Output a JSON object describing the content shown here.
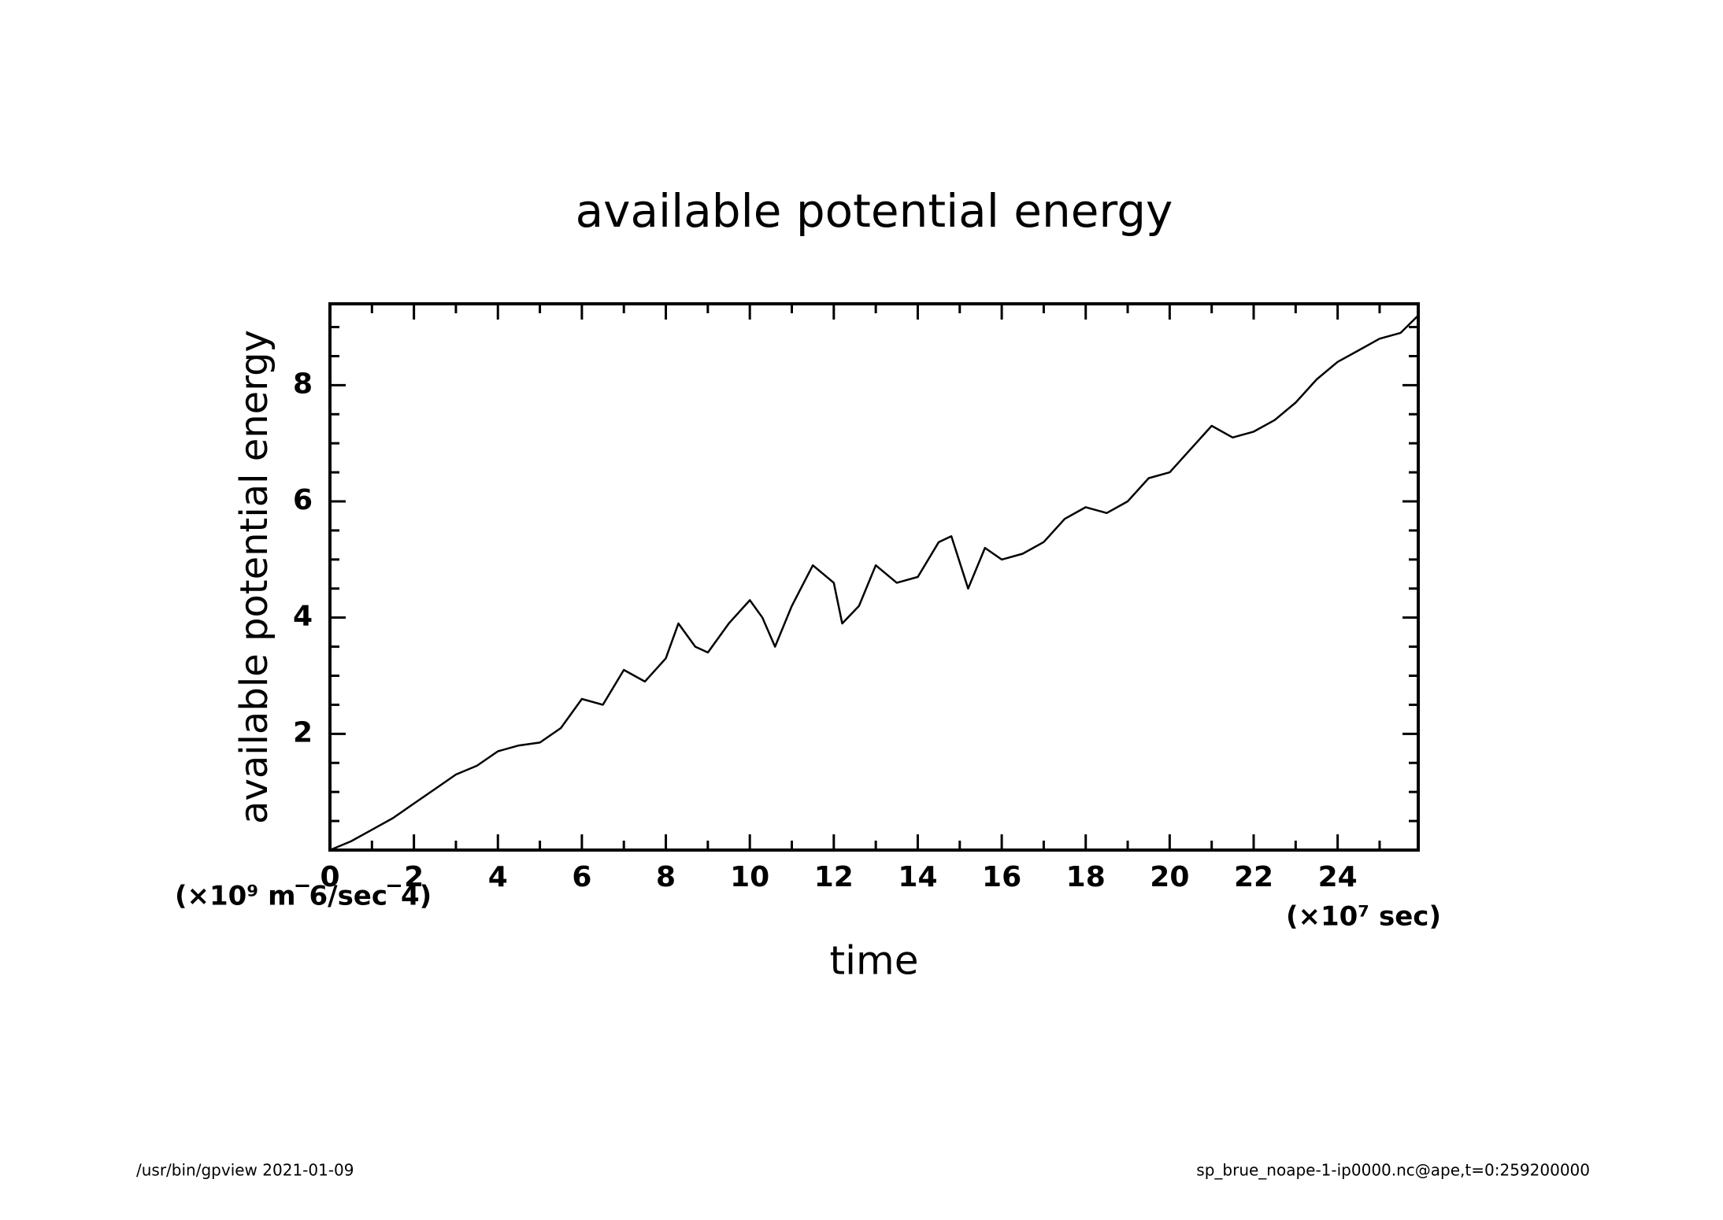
{
  "chart_data": {
    "type": "line",
    "title": "available potential energy",
    "y_label": "available potential energy",
    "x_label": "time",
    "y_unit": "(×10⁹ m‾6/sec‾4)",
    "x_unit": "(×10⁷ sec)",
    "footer_left": "/usr/bin/gpview   2021-01-09",
    "footer_right": "sp_brue_noape-1-ip0000.nc@ape,t=0:259200000",
    "color": "#000000",
    "x": [
      0,
      0.5,
      1,
      1.5,
      2,
      2.5,
      3,
      3.5,
      4,
      4.5,
      5,
      5.5,
      6,
      6.5,
      7,
      7.5,
      8,
      8.3,
      8.7,
      9,
      9.5,
      10,
      10.3,
      10.6,
      11,
      11.5,
      12,
      12.2,
      12.6,
      13,
      13.5,
      14,
      14.5,
      14.8,
      15.2,
      15.6,
      16,
      16.5,
      17,
      17.5,
      18,
      18.5,
      19,
      19.5,
      20,
      20.5,
      21,
      21.5,
      22,
      22.5,
      23,
      23.5,
      24,
      24.5,
      25,
      25.5,
      25.92
    ],
    "values": [
      0,
      0.15,
      0.35,
      0.55,
      0.8,
      1.05,
      1.3,
      1.45,
      1.7,
      1.8,
      1.85,
      2.1,
      2.6,
      2.5,
      3.1,
      2.9,
      3.3,
      3.9,
      3.5,
      3.4,
      3.9,
      4.3,
      4.0,
      3.5,
      4.2,
      4.9,
      4.6,
      3.9,
      4.2,
      4.9,
      4.6,
      4.7,
      5.3,
      5.4,
      4.5,
      5.2,
      5.0,
      5.1,
      5.3,
      5.7,
      5.9,
      5.8,
      6.0,
      6.4,
      6.5,
      6.9,
      7.3,
      7.1,
      7.2,
      7.4,
      7.7,
      8.1,
      8.4,
      8.6,
      8.8,
      8.9,
      9.2
    ],
    "xlim": [
      0,
      25.92
    ],
    "ylim": [
      0,
      9.4
    ],
    "xticks": [
      0,
      2,
      4,
      6,
      8,
      10,
      12,
      14,
      16,
      18,
      20,
      22,
      24
    ],
    "yticks": [
      2,
      4,
      6,
      8
    ],
    "xminorticks": [
      1,
      3,
      5,
      7,
      9,
      11,
      13,
      15,
      17,
      19,
      21,
      23,
      25
    ],
    "yminorticks": [
      0.5,
      1,
      1.5,
      2.5,
      3,
      3.5,
      4.5,
      5,
      5.5,
      6.5,
      7,
      7.5,
      8.5,
      9
    ],
    "grid": false
  }
}
